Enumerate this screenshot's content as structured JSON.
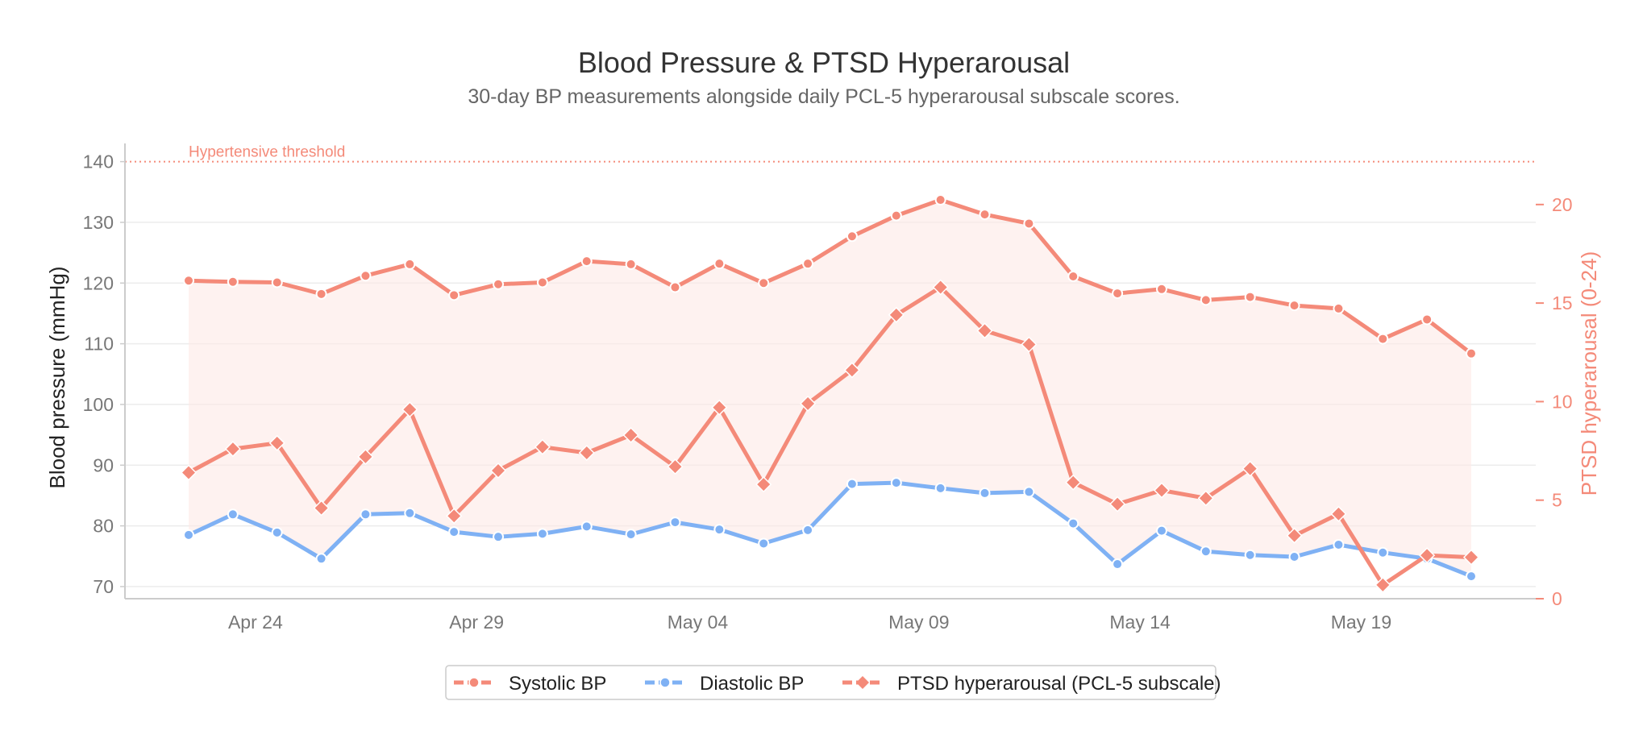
{
  "chart_data": {
    "type": "line",
    "title": "Blood Pressure & PTSD Hyperarousal",
    "subtitle": "30-day BP measurements alongside daily PCL-5 hyperarousal subscale scores.",
    "x": [
      "2024-04-23",
      "2024-04-24",
      "2024-04-25",
      "2024-04-26",
      "2024-04-27",
      "2024-04-28",
      "2024-04-29",
      "2024-04-30",
      "2024-05-01",
      "2024-05-02",
      "2024-05-03",
      "2024-05-04",
      "2024-05-05",
      "2024-05-06",
      "2024-05-07",
      "2024-05-08",
      "2024-05-09",
      "2024-05-10",
      "2024-05-11",
      "2024-05-12",
      "2024-05-13",
      "2024-05-14",
      "2024-05-15",
      "2024-05-16",
      "2024-05-17",
      "2024-05-18",
      "2024-05-19",
      "2024-05-20",
      "2024-05-21",
      "2024-05-22"
    ],
    "x_tick_labels": [
      {
        "date": "2024-04-24",
        "label": "Apr 24"
      },
      {
        "date": "2024-04-29",
        "label": "Apr 29"
      },
      {
        "date": "2024-05-04",
        "label": "May 04"
      },
      {
        "date": "2024-05-09",
        "label": "May 09"
      },
      {
        "date": "2024-05-14",
        "label": "May 14"
      },
      {
        "date": "2024-05-19",
        "label": "May 19"
      }
    ],
    "ylabel": "Blood pressure (mmHg)",
    "ylim": [
      68,
      143
    ],
    "y_ticks": [
      70,
      80,
      90,
      100,
      110,
      120,
      130,
      140
    ],
    "y2label": "PTSD hyperarousal (0-24)",
    "y2lim": [
      0,
      23.1
    ],
    "y2_ticks": [
      0,
      5,
      10,
      15,
      20
    ],
    "grid": true,
    "legend_position": "bottom-center",
    "shaded_band": "between systolic and diastolic",
    "annotations": [
      {
        "text": "Hypertensive threshold",
        "axis": "left",
        "y": 140,
        "style": "dotted"
      }
    ],
    "series": [
      {
        "name": "Systolic BP",
        "axis": "left",
        "marker": "circle",
        "color": "#f48a79",
        "values": [
          120.4,
          120.2,
          120.1,
          118.2,
          121.2,
          123.1,
          118.0,
          119.8,
          120.1,
          123.6,
          123.1,
          119.3,
          123.2,
          120.0,
          123.2,
          127.7,
          131.1,
          133.7,
          131.3,
          129.8,
          121.1,
          118.3,
          119.0,
          117.2,
          117.7,
          116.3,
          115.8,
          110.8,
          114.0,
          108.4
        ]
      },
      {
        "name": "Diastolic BP",
        "axis": "left",
        "marker": "circle",
        "color": "#7fb1f4",
        "values": [
          78.5,
          81.9,
          78.9,
          74.6,
          81.9,
          82.1,
          79.0,
          78.2,
          78.7,
          79.9,
          78.6,
          80.6,
          79.4,
          77.1,
          79.3,
          86.9,
          87.1,
          86.2,
          85.4,
          85.6,
          80.4,
          73.7,
          79.2,
          75.8,
          75.2,
          74.9,
          76.9,
          75.6,
          74.6,
          71.7
        ]
      },
      {
        "name": "PTSD hyperarousal (PCL-5 subscale)",
        "axis": "right",
        "marker": "diamond",
        "color": "#f48a79",
        "values": [
          6.4,
          7.6,
          7.9,
          4.6,
          7.2,
          9.6,
          4.2,
          6.5,
          7.7,
          7.4,
          8.3,
          6.7,
          9.7,
          5.8,
          9.9,
          11.6,
          14.4,
          15.8,
          13.6,
          12.9,
          5.9,
          4.8,
          5.5,
          5.1,
          6.6,
          3.2,
          4.3,
          0.7,
          2.2,
          2.1
        ]
      }
    ]
  },
  "colors": {
    "systolic": "#f48a79",
    "diastolic": "#7fb1f4",
    "ptsd": "#f48a79",
    "band_fill": "#fdeae6",
    "grid": "#ececec",
    "axis": "#cccccc",
    "right_axis_text": "#f48a79",
    "threshold": "#f48a79"
  }
}
